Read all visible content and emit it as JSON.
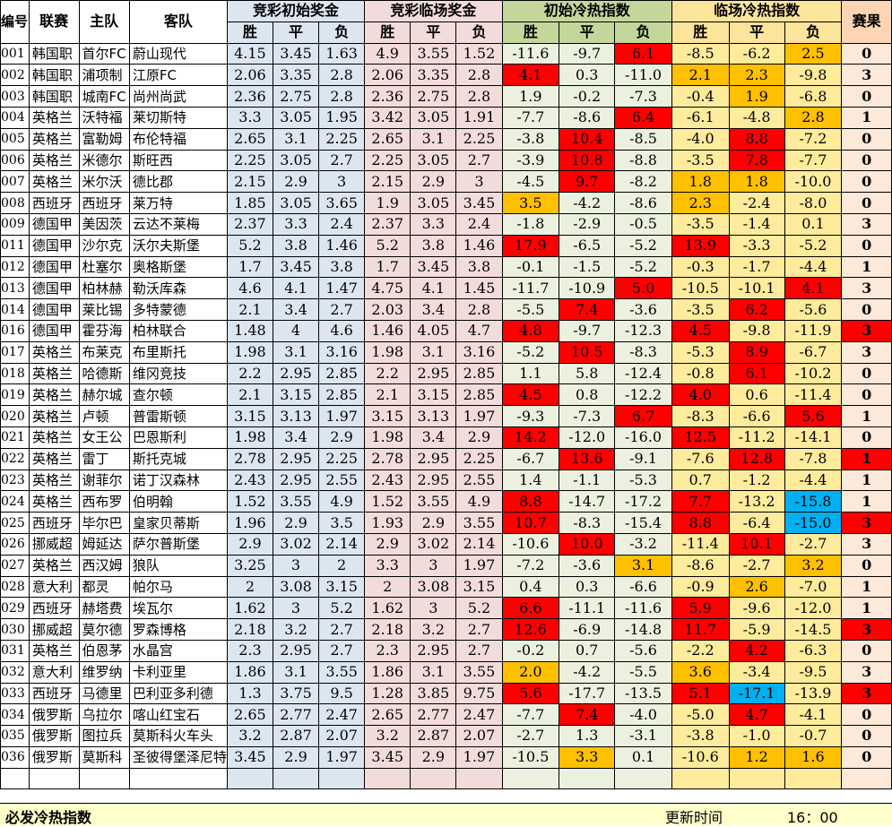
{
  "header": {
    "columns": {
      "id": "编号",
      "league": "联赛",
      "home": "主队",
      "away": "客队",
      "result": "赛果"
    },
    "groups": {
      "initial_odds": "竞彩初始奖金",
      "live_odds": "竞彩临场奖金",
      "initial_index": "初始冷热指数",
      "live_index": "临场冷热指数"
    },
    "sub": {
      "win": "胜",
      "draw": "平",
      "loss": "负"
    }
  },
  "colors": {
    "red": "#ff0000",
    "orange": "#ffc000",
    "blue": "#00b0f0"
  },
  "rows": [
    {
      "id": "001",
      "league": "韩国职",
      "home": "首尔FC",
      "away": "蔚山现代",
      "io": [
        "4.15",
        "3.45",
        "1.63"
      ],
      "lo": [
        "4.9",
        "3.55",
        "1.52"
      ],
      "ii": [
        "-11.6",
        "-9.7",
        "6.1"
      ],
      "li": [
        "-8.5",
        "-6.2",
        "2.5"
      ],
      "res": "0",
      "iih": [
        null,
        null,
        "red"
      ],
      "lih": [
        null,
        null,
        "orange"
      ],
      "resh": null
    },
    {
      "id": "002",
      "league": "韩国职",
      "home": "浦项制",
      "away": "江原FC",
      "io": [
        "2.06",
        "3.35",
        "2.8"
      ],
      "lo": [
        "2.06",
        "3.35",
        "2.8"
      ],
      "ii": [
        "4.1",
        "0.3",
        "-11.0"
      ],
      "li": [
        "2.1",
        "2.3",
        "-9.8"
      ],
      "res": "3",
      "iih": [
        "red",
        null,
        null
      ],
      "lih": [
        "orange",
        "orange",
        null
      ],
      "resh": null
    },
    {
      "id": "003",
      "league": "韩国职",
      "home": "城南FC",
      "away": "尚州尚武",
      "io": [
        "2.36",
        "2.75",
        "2.8"
      ],
      "lo": [
        "2.36",
        "2.75",
        "2.8"
      ],
      "ii": [
        "1.9",
        "-0.2",
        "-7.3"
      ],
      "li": [
        "-0.4",
        "1.9",
        "-6.8"
      ],
      "res": "0",
      "iih": [
        null,
        null,
        null
      ],
      "lih": [
        null,
        "orange",
        null
      ],
      "resh": null
    },
    {
      "id": "004",
      "league": "英格兰",
      "home": "沃特福",
      "away": "莱切斯特",
      "io": [
        "3.3",
        "3.05",
        "1.95"
      ],
      "lo": [
        "3.42",
        "3.05",
        "1.91"
      ],
      "ii": [
        "-7.7",
        "-8.6",
        "6.4"
      ],
      "li": [
        "-6.1",
        "-4.8",
        "2.8"
      ],
      "res": "1",
      "iih": [
        null,
        null,
        "red"
      ],
      "lih": [
        null,
        null,
        "orange"
      ],
      "resh": null
    },
    {
      "id": "005",
      "league": "英格兰",
      "home": "富勒姆",
      "away": "布伦特福",
      "io": [
        "2.65",
        "3.1",
        "2.25"
      ],
      "lo": [
        "2.65",
        "3.1",
        "2.25"
      ],
      "ii": [
        "-3.8",
        "10.4",
        "-8.5"
      ],
      "li": [
        "-4.0",
        "8.8",
        "-7.2"
      ],
      "res": "0",
      "iih": [
        null,
        "red",
        null
      ],
      "lih": [
        null,
        "red",
        null
      ],
      "resh": null
    },
    {
      "id": "006",
      "league": "英格兰",
      "home": "米德尔",
      "away": "斯旺西",
      "io": [
        "2.25",
        "3.05",
        "2.7"
      ],
      "lo": [
        "2.25",
        "3.05",
        "2.7"
      ],
      "ii": [
        "-3.9",
        "10.8",
        "-8.8"
      ],
      "li": [
        "-3.5",
        "7.8",
        "-7.7"
      ],
      "res": "0",
      "iih": [
        null,
        "red",
        null
      ],
      "lih": [
        null,
        "red",
        null
      ],
      "resh": null
    },
    {
      "id": "007",
      "league": "英格兰",
      "home": "米尔沃",
      "away": "德比郡",
      "io": [
        "2.15",
        "2.9",
        "3"
      ],
      "lo": [
        "2.15",
        "2.9",
        "3"
      ],
      "ii": [
        "-4.5",
        "9.7",
        "-8.2"
      ],
      "li": [
        "1.8",
        "1.8",
        "-10.0"
      ],
      "res": "0",
      "iih": [
        null,
        "red",
        null
      ],
      "lih": [
        "orange",
        "orange",
        null
      ],
      "resh": null
    },
    {
      "id": "008",
      "league": "西班牙",
      "home": "西班牙",
      "away": "莱万特",
      "io": [
        "1.85",
        "3.05",
        "3.65"
      ],
      "lo": [
        "1.9",
        "3.05",
        "3.45"
      ],
      "ii": [
        "3.5",
        "-4.2",
        "-8.6"
      ],
      "li": [
        "2.3",
        "-2.4",
        "-8.0"
      ],
      "res": "0",
      "iih": [
        "orange",
        null,
        null
      ],
      "lih": [
        "orange",
        null,
        null
      ],
      "resh": null
    },
    {
      "id": "009",
      "league": "德国甲",
      "home": "美因茨",
      "away": "云达不莱梅",
      "io": [
        "2.37",
        "3.3",
        "2.4"
      ],
      "lo": [
        "2.37",
        "3.3",
        "2.4"
      ],
      "ii": [
        "-1.8",
        "-2.9",
        "-0.5"
      ],
      "li": [
        "-3.5",
        "-1.4",
        "0.1"
      ],
      "res": "3",
      "iih": [
        null,
        null,
        null
      ],
      "lih": [
        null,
        null,
        null
      ],
      "resh": null
    },
    {
      "id": "011",
      "league": "德国甲",
      "home": "沙尔克",
      "away": "沃尔夫斯堡",
      "io": [
        "5.2",
        "3.8",
        "1.46"
      ],
      "lo": [
        "5.2",
        "3.8",
        "1.46"
      ],
      "ii": [
        "17.9",
        "-6.5",
        "-5.2"
      ],
      "li": [
        "13.9",
        "-3.3",
        "-5.2"
      ],
      "res": "0",
      "iih": [
        "red",
        null,
        null
      ],
      "lih": [
        "red",
        null,
        null
      ],
      "resh": null
    },
    {
      "id": "012",
      "league": "德国甲",
      "home": "杜塞尔",
      "away": "奥格斯堡",
      "io": [
        "1.7",
        "3.45",
        "3.8"
      ],
      "lo": [
        "1.7",
        "3.45",
        "3.8"
      ],
      "ii": [
        "-0.1",
        "-1.5",
        "-5.2"
      ],
      "li": [
        "-0.3",
        "-1.7",
        "-4.4"
      ],
      "res": "1",
      "iih": [
        null,
        null,
        null
      ],
      "lih": [
        null,
        null,
        null
      ],
      "resh": null
    },
    {
      "id": "013",
      "league": "德国甲",
      "home": "柏林赫",
      "away": "勒沃库森",
      "io": [
        "4.6",
        "4.1",
        "1.47"
      ],
      "lo": [
        "4.75",
        "4.1",
        "1.45"
      ],
      "ii": [
        "-11.7",
        "-10.9",
        "5.0"
      ],
      "li": [
        "-10.5",
        "-10.1",
        "4.1"
      ],
      "res": "3",
      "iih": [
        null,
        null,
        "red"
      ],
      "lih": [
        null,
        null,
        "red"
      ],
      "resh": null
    },
    {
      "id": "014",
      "league": "德国甲",
      "home": "莱比锡",
      "away": "多特蒙德",
      "io": [
        "2.1",
        "3.4",
        "2.7"
      ],
      "lo": [
        "2.03",
        "3.4",
        "2.8"
      ],
      "ii": [
        "-5.5",
        "7.4",
        "-3.6"
      ],
      "li": [
        "-3.5",
        "6.2",
        "-5.6"
      ],
      "res": "0",
      "iih": [
        null,
        "red",
        null
      ],
      "lih": [
        null,
        "red",
        null
      ],
      "resh": null
    },
    {
      "id": "016",
      "league": "德国甲",
      "home": "霍芬海",
      "away": "柏林联合",
      "io": [
        "1.48",
        "4",
        "4.6"
      ],
      "lo": [
        "1.46",
        "4.05",
        "4.7"
      ],
      "ii": [
        "4.8",
        "-9.7",
        "-12.3"
      ],
      "li": [
        "4.5",
        "-9.8",
        "-11.9"
      ],
      "res": "3",
      "iih": [
        "red",
        null,
        null
      ],
      "lih": [
        "red",
        null,
        null
      ],
      "resh": "red"
    },
    {
      "id": "017",
      "league": "英格兰",
      "home": "布莱克",
      "away": "布里斯托",
      "io": [
        "1.98",
        "3.1",
        "3.16"
      ],
      "lo": [
        "1.98",
        "3.1",
        "3.16"
      ],
      "ii": [
        "-5.2",
        "10.5",
        "-8.3"
      ],
      "li": [
        "-5.3",
        "8.9",
        "-6.7"
      ],
      "res": "3",
      "iih": [
        null,
        "red",
        null
      ],
      "lih": [
        null,
        "red",
        null
      ],
      "resh": null
    },
    {
      "id": "018",
      "league": "英格兰",
      "home": "哈德斯",
      "away": "维冈竞技",
      "io": [
        "2.2",
        "2.95",
        "2.85"
      ],
      "lo": [
        "2.2",
        "2.95",
        "2.85"
      ],
      "ii": [
        "1.1",
        "5.8",
        "-12.4"
      ],
      "li": [
        "-0.8",
        "6.1",
        "-10.2"
      ],
      "res": "0",
      "iih": [
        null,
        null,
        null
      ],
      "lih": [
        null,
        "red",
        null
      ],
      "resh": null
    },
    {
      "id": "019",
      "league": "英格兰",
      "home": "赫尔城",
      "away": "查尔顿",
      "io": [
        "2.1",
        "3.15",
        "2.85"
      ],
      "lo": [
        "2.1",
        "3.15",
        "2.85"
      ],
      "ii": [
        "4.5",
        "0.8",
        "-12.2"
      ],
      "li": [
        "4.0",
        "0.6",
        "-11.4"
      ],
      "res": "0",
      "iih": [
        "red",
        null,
        null
      ],
      "lih": [
        "red",
        null,
        null
      ],
      "resh": null
    },
    {
      "id": "020",
      "league": "英格兰",
      "home": "卢顿",
      "away": "普雷斯顿",
      "io": [
        "3.15",
        "3.13",
        "1.97"
      ],
      "lo": [
        "3.15",
        "3.13",
        "1.97"
      ],
      "ii": [
        "-9.3",
        "-7.3",
        "6.7"
      ],
      "li": [
        "-8.3",
        "-6.6",
        "5.6"
      ],
      "res": "1",
      "iih": [
        null,
        null,
        "red"
      ],
      "lih": [
        null,
        null,
        "red"
      ],
      "resh": null
    },
    {
      "id": "021",
      "league": "英格兰",
      "home": "女王公",
      "away": "巴恩斯利",
      "io": [
        "1.98",
        "3.4",
        "2.9"
      ],
      "lo": [
        "1.98",
        "3.4",
        "2.9"
      ],
      "ii": [
        "14.2",
        "-12.0",
        "-16.0"
      ],
      "li": [
        "12.5",
        "-11.2",
        "-14.1"
      ],
      "res": "0",
      "iih": [
        "red",
        null,
        null
      ],
      "lih": [
        "red",
        null,
        null
      ],
      "resh": null
    },
    {
      "id": "022",
      "league": "英格兰",
      "home": "雷丁",
      "away": "斯托克城",
      "io": [
        "2.78",
        "2.95",
        "2.25"
      ],
      "lo": [
        "2.78",
        "2.95",
        "2.25"
      ],
      "ii": [
        "-6.7",
        "13.6",
        "-9.1"
      ],
      "li": [
        "-7.6",
        "12.8",
        "-7.8"
      ],
      "res": "1",
      "iih": [
        null,
        "red",
        null
      ],
      "lih": [
        null,
        "red",
        null
      ],
      "resh": "red"
    },
    {
      "id": "023",
      "league": "英格兰",
      "home": "谢菲尔",
      "away": "诺丁汉森林",
      "io": [
        "2.43",
        "2.95",
        "2.55"
      ],
      "lo": [
        "2.43",
        "2.95",
        "2.55"
      ],
      "ii": [
        "1.4",
        "-1.1",
        "-5.3"
      ],
      "li": [
        "0.7",
        "-1.2",
        "-4.4"
      ],
      "res": "1",
      "iih": [
        null,
        null,
        null
      ],
      "lih": [
        null,
        null,
        null
      ],
      "resh": null
    },
    {
      "id": "024",
      "league": "英格兰",
      "home": "西布罗",
      "away": "伯明翰",
      "io": [
        "1.52",
        "3.55",
        "4.9"
      ],
      "lo": [
        "1.52",
        "3.55",
        "4.9"
      ],
      "ii": [
        "8.8",
        "-14.7",
        "-17.2"
      ],
      "li": [
        "7.7",
        "-13.2",
        "-15.8"
      ],
      "res": "1",
      "iih": [
        "red",
        null,
        null
      ],
      "lih": [
        "red",
        null,
        "blue"
      ],
      "resh": null
    },
    {
      "id": "025",
      "league": "西班牙",
      "home": "毕尔巴",
      "away": "皇家贝蒂斯",
      "io": [
        "1.96",
        "2.9",
        "3.5"
      ],
      "lo": [
        "1.93",
        "2.9",
        "3.55"
      ],
      "ii": [
        "10.7",
        "-8.3",
        "-15.4"
      ],
      "li": [
        "8.8",
        "-6.4",
        "-15.0"
      ],
      "res": "3",
      "iih": [
        "red",
        null,
        null
      ],
      "lih": [
        "red",
        null,
        "blue"
      ],
      "resh": "red"
    },
    {
      "id": "026",
      "league": "挪威超",
      "home": "姆延达",
      "away": "萨尔普斯堡",
      "io": [
        "2.9",
        "3.02",
        "2.14"
      ],
      "lo": [
        "2.9",
        "3.02",
        "2.14"
      ],
      "ii": [
        "-10.6",
        "10.0",
        "-3.2"
      ],
      "li": [
        "-11.4",
        "10.1",
        "-2.7"
      ],
      "res": "3",
      "iih": [
        null,
        "red",
        null
      ],
      "lih": [
        null,
        "red",
        null
      ],
      "resh": null
    },
    {
      "id": "027",
      "league": "英格兰",
      "home": "西汉姆",
      "away": "狼队",
      "io": [
        "3.25",
        "3",
        "2"
      ],
      "lo": [
        "3.3",
        "3",
        "1.97"
      ],
      "ii": [
        "-7.2",
        "-3.6",
        "3.1"
      ],
      "li": [
        "-8.6",
        "-2.7",
        "3.2"
      ],
      "res": "0",
      "iih": [
        null,
        null,
        "orange"
      ],
      "lih": [
        null,
        null,
        "orange"
      ],
      "resh": null
    },
    {
      "id": "028",
      "league": "意大利",
      "home": "都灵",
      "away": "帕尔马",
      "io": [
        "2",
        "3.08",
        "3.15"
      ],
      "lo": [
        "2",
        "3.08",
        "3.15"
      ],
      "ii": [
        "0.4",
        "0.3",
        "-6.6"
      ],
      "li": [
        "-0.9",
        "2.6",
        "-7.0"
      ],
      "res": "1",
      "iih": [
        null,
        null,
        null
      ],
      "lih": [
        null,
        "orange",
        null
      ],
      "resh": null
    },
    {
      "id": "029",
      "league": "西班牙",
      "home": "赫塔费",
      "away": "埃瓦尔",
      "io": [
        "1.62",
        "3",
        "5.2"
      ],
      "lo": [
        "1.62",
        "3",
        "5.2"
      ],
      "ii": [
        "6.6",
        "-11.1",
        "-11.6"
      ],
      "li": [
        "5.9",
        "-9.6",
        "-12.0"
      ],
      "res": "1",
      "iih": [
        "red",
        null,
        null
      ],
      "lih": [
        "red",
        null,
        null
      ],
      "resh": null
    },
    {
      "id": "030",
      "league": "挪威超",
      "home": "莫尔德",
      "away": "罗森博格",
      "io": [
        "2.18",
        "3.2",
        "2.7"
      ],
      "lo": [
        "2.18",
        "3.2",
        "2.7"
      ],
      "ii": [
        "12.6",
        "-6.9",
        "-14.8"
      ],
      "li": [
        "11.7",
        "-5.9",
        "-14.5"
      ],
      "res": "3",
      "iih": [
        "red",
        null,
        null
      ],
      "lih": [
        "red",
        null,
        null
      ],
      "resh": "red"
    },
    {
      "id": "031",
      "league": "英格兰",
      "home": "伯恩茅",
      "away": "水晶宫",
      "io": [
        "2.3",
        "2.95",
        "2.7"
      ],
      "lo": [
        "2.3",
        "2.95",
        "2.7"
      ],
      "ii": [
        "-0.2",
        "0.7",
        "-5.6"
      ],
      "li": [
        "-2.2",
        "4.2",
        "-6.3"
      ],
      "res": "0",
      "iih": [
        null,
        null,
        null
      ],
      "lih": [
        null,
        "red",
        null
      ],
      "resh": null
    },
    {
      "id": "032",
      "league": "意大利",
      "home": "维罗纳",
      "away": "卡利亚里",
      "io": [
        "1.86",
        "3.1",
        "3.55"
      ],
      "lo": [
        "1.86",
        "3.1",
        "3.55"
      ],
      "ii": [
        "2.0",
        "-4.2",
        "-5.5"
      ],
      "li": [
        "3.6",
        "-3.4",
        "-9.5"
      ],
      "res": "3",
      "iih": [
        "orange",
        null,
        null
      ],
      "lih": [
        "orange",
        null,
        null
      ],
      "resh": null
    },
    {
      "id": "033",
      "league": "西班牙",
      "home": "马德里",
      "away": "巴利亚多利德",
      "io": [
        "1.3",
        "3.75",
        "9.5"
      ],
      "lo": [
        "1.28",
        "3.85",
        "9.75"
      ],
      "ii": [
        "5.6",
        "-17.7",
        "-13.5"
      ],
      "li": [
        "5.1",
        "-17.1",
        "-13.9"
      ],
      "res": "3",
      "iih": [
        "red",
        null,
        null
      ],
      "lih": [
        "red",
        "blue",
        null
      ],
      "resh": "red"
    },
    {
      "id": "034",
      "league": "俄罗斯",
      "home": "乌拉尔",
      "away": "喀山红宝石",
      "io": [
        "2.65",
        "2.77",
        "2.47"
      ],
      "lo": [
        "2.65",
        "2.77",
        "2.47"
      ],
      "ii": [
        "-7.7",
        "7.4",
        "-4.0"
      ],
      "li": [
        "-5.0",
        "4.7",
        "-4.1"
      ],
      "res": "0",
      "iih": [
        null,
        "red",
        null
      ],
      "lih": [
        null,
        "red",
        null
      ],
      "resh": null
    },
    {
      "id": "035",
      "league": "俄罗斯",
      "home": "图拉兵",
      "away": "莫斯科火车头",
      "io": [
        "3.2",
        "2.87",
        "2.07"
      ],
      "lo": [
        "3.2",
        "2.87",
        "2.07"
      ],
      "ii": [
        "-2.7",
        "1.3",
        "-3.1"
      ],
      "li": [
        "-3.8",
        "-1.0",
        "-0.7"
      ],
      "res": "0",
      "iih": [
        null,
        null,
        null
      ],
      "lih": [
        null,
        null,
        null
      ],
      "resh": null
    },
    {
      "id": "036",
      "league": "俄罗斯",
      "home": "莫斯科",
      "away": "圣彼得堡泽尼特",
      "io": [
        "3.45",
        "2.9",
        "1.97"
      ],
      "lo": [
        "3.45",
        "2.9",
        "1.97"
      ],
      "ii": [
        "-10.5",
        "3.3",
        "0.1"
      ],
      "li": [
        "-10.6",
        "1.2",
        "1.6"
      ],
      "res": "0",
      "iih": [
        null,
        "orange",
        null
      ],
      "lih": [
        null,
        "orange",
        "orange"
      ],
      "resh": null
    }
  ],
  "footer": {
    "title": "必发冷热指数",
    "update_label": "更新时间",
    "time": "16：00"
  }
}
